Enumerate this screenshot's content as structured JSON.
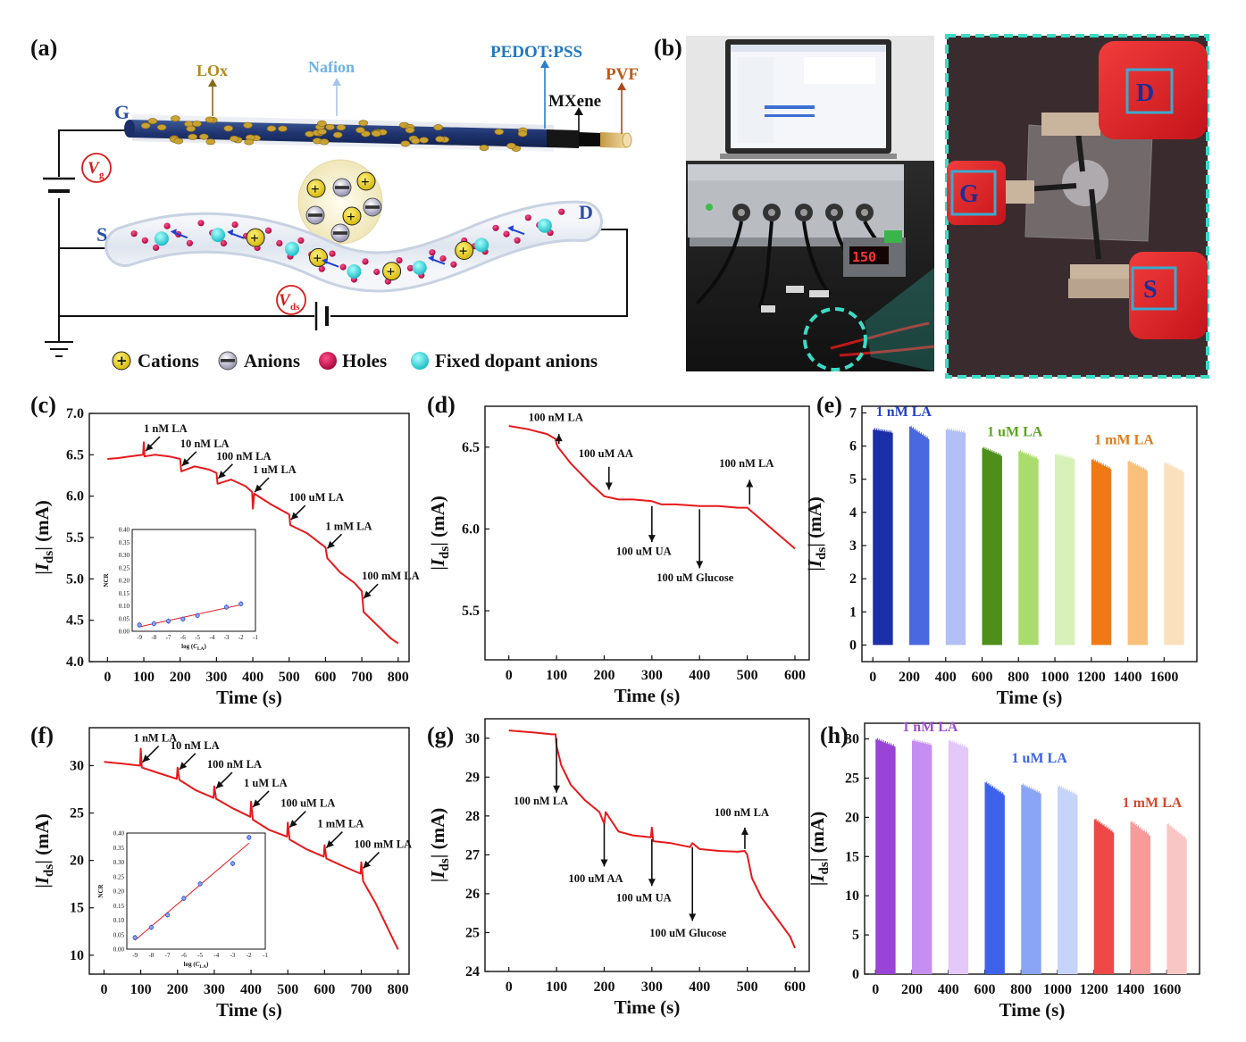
{
  "panel_letters": [
    "(a)",
    "(b)",
    "(c)",
    "(d)",
    "(e)",
    "(f)",
    "(g)",
    "(h)"
  ],
  "schematic": {
    "labels": {
      "lox": "LOx",
      "nafion": "Nafion",
      "pedot": "PEDOT:PSS",
      "mxene": "MXene",
      "pvf": "PVF",
      "gate": "G",
      "source": "S",
      "drain": "D"
    },
    "vg": {
      "main": "V",
      "sub": "g"
    },
    "vds": {
      "main": "V",
      "sub": "ds"
    },
    "legend": [
      "Cations",
      "Anions",
      "Holes",
      "Fixed dopant anions"
    ]
  },
  "photo": {
    "device_labels": [
      "D",
      "G",
      "S"
    ],
    "meter_reading": "150"
  },
  "colors": {
    "trace": "#e8191c",
    "title_blue": "#2541c9",
    "title_green": "#5aa51d",
    "title_orange": "#e07a1b",
    "title_purple": "#9b4fd6",
    "title_blue2": "#3b62e8",
    "title_red": "#d8472f"
  },
  "chart_data": [
    {
      "id": "c",
      "type": "line",
      "xlabel": "Time (s)",
      "ylabel": "|I_ds| (mA)",
      "xlim": [
        -50,
        830
      ],
      "ylim": [
        4.0,
        7.0
      ],
      "xticks": [
        0,
        100,
        200,
        300,
        400,
        500,
        600,
        700,
        800
      ],
      "yticks": [
        4.0,
        4.5,
        5.0,
        5.5,
        6.0,
        6.5,
        7.0
      ],
      "series": [
        {
          "x": [
            0,
            30,
            60,
            98,
            100,
            102,
            130,
            170,
            200,
            203,
            240,
            280,
            300,
            303,
            340,
            380,
            398,
            400,
            404,
            450,
            500,
            503,
            550,
            600,
            605,
            640,
            680,
            700,
            705,
            740,
            780,
            800
          ],
          "y": [
            6.45,
            6.46,
            6.48,
            6.5,
            6.65,
            6.48,
            6.5,
            6.48,
            6.45,
            6.3,
            6.36,
            6.32,
            6.28,
            6.15,
            6.2,
            6.12,
            6.05,
            5.85,
            6.03,
            5.9,
            5.78,
            5.65,
            5.55,
            5.38,
            5.25,
            5.08,
            4.95,
            4.85,
            4.6,
            4.45,
            4.28,
            4.22
          ]
        }
      ],
      "annotations": [
        {
          "text": "1 nM LA",
          "x": 100
        },
        {
          "text": "10 nM LA",
          "x": 200
        },
        {
          "text": "100 nM LA",
          "x": 300
        },
        {
          "text": "1 uM LA",
          "x": 400
        },
        {
          "text": "100 uM LA",
          "x": 500
        },
        {
          "text": "1 mM LA",
          "x": 600
        },
        {
          "text": "100 mM LA",
          "x": 700
        }
      ],
      "inset": {
        "xlabel": "log (C_LA)",
        "ylabel": "NCR",
        "xlim": [
          -9.5,
          -1
        ],
        "ylim": [
          0,
          0.4
        ],
        "xticks": [
          -9,
          -8,
          -7,
          -6,
          -5,
          -4,
          -3,
          -2,
          -1
        ],
        "yticks": [
          0.0,
          0.05,
          0.1,
          0.15,
          0.2,
          0.25,
          0.3,
          0.35,
          0.4
        ],
        "x": [
          -9,
          -8,
          -7,
          -6,
          -5,
          -3,
          -2
        ],
        "y": [
          0.025,
          0.03,
          0.04,
          0.048,
          0.062,
          0.095,
          0.108
        ]
      }
    },
    {
      "id": "d",
      "type": "line",
      "xlabel": "Time (s)",
      "ylabel": "|I_ds| (mA)",
      "xlim": [
        -50,
        630
      ],
      "ylim": [
        5.2,
        6.75
      ],
      "xticks": [
        0,
        100,
        200,
        300,
        400,
        500,
        600
      ],
      "yticks": [
        5.5,
        6.0,
        6.5
      ],
      "series": [
        {
          "x": [
            0,
            40,
            80,
            98,
            100,
            103,
            130,
            170,
            200,
            230,
            260,
            300,
            320,
            350,
            400,
            440,
            480,
            500,
            520,
            560,
            600
          ],
          "y": [
            6.63,
            6.61,
            6.58,
            6.55,
            6.52,
            6.5,
            6.4,
            6.28,
            6.2,
            6.18,
            6.18,
            6.17,
            6.15,
            6.15,
            6.14,
            6.14,
            6.13,
            6.13,
            6.08,
            5.98,
            5.88
          ]
        }
      ],
      "annotations": [
        {
          "text": "100 nM LA",
          "x": 105
        },
        {
          "text": "100 uM AA",
          "x": 210
        },
        {
          "text": "100 uM UA",
          "x": 300
        },
        {
          "text": "100 uM Glucose",
          "x": 400
        },
        {
          "text": "100 nM LA",
          "x": 505
        }
      ]
    },
    {
      "id": "e",
      "type": "bar",
      "xlabel": "Time (s)",
      "ylabel": "|I_ds| (mA)",
      "xlim": [
        -60,
        1780
      ],
      "ylim": [
        -0.5,
        7.2
      ],
      "xticks": [
        0,
        200,
        400,
        600,
        800,
        1000,
        1200,
        1400,
        1600
      ],
      "yticks": [
        0,
        1,
        2,
        3,
        4,
        5,
        6,
        7
      ],
      "blocks": [
        {
          "start": 0,
          "end": 110,
          "top": 6.5,
          "end_top": 6.4,
          "color": "#1a2fa8"
        },
        {
          "start": 200,
          "end": 310,
          "top": 6.6,
          "end_top": 6.2,
          "color": "#4a68e0"
        },
        {
          "start": 400,
          "end": 510,
          "top": 6.5,
          "end_top": 6.4,
          "color": "#b3c0f5"
        },
        {
          "start": 600,
          "end": 710,
          "top": 5.95,
          "end_top": 5.7,
          "color": "#4e8f1a"
        },
        {
          "start": 800,
          "end": 910,
          "top": 5.85,
          "end_top": 5.6,
          "color": "#a9dc6c"
        },
        {
          "start": 1000,
          "end": 1110,
          "top": 5.75,
          "end_top": 5.6,
          "color": "#d8f1b8"
        },
        {
          "start": 1200,
          "end": 1310,
          "top": 5.6,
          "end_top": 5.3,
          "color": "#ef7a15"
        },
        {
          "start": 1400,
          "end": 1510,
          "top": 5.55,
          "end_top": 5.25,
          "color": "#f8c07a"
        },
        {
          "start": 1600,
          "end": 1710,
          "top": 5.5,
          "end_top": 5.2,
          "color": "#fbe0bd"
        }
      ],
      "labels": [
        {
          "text": "1 nM LA",
          "x": 170,
          "y": 6.9,
          "color": "#2541c9"
        },
        {
          "text": "1 uM LA",
          "x": 780,
          "y": 6.3,
          "color": "#5aa51d"
        },
        {
          "text": "1 mM LA",
          "x": 1380,
          "y": 6.05,
          "color": "#e07a1b"
        }
      ]
    },
    {
      "id": "f",
      "type": "line",
      "xlabel": "Time (s)",
      "ylabel": "|I_ds| (mA)",
      "xlim": [
        -40,
        830
      ],
      "ylim": [
        8,
        34
      ],
      "xticks": [
        0,
        100,
        200,
        300,
        400,
        500,
        600,
        700,
        800
      ],
      "yticks": [
        10,
        15,
        20,
        25,
        30
      ],
      "series": [
        {
          "x": [
            0,
            50,
            98,
            100,
            103,
            150,
            198,
            200,
            205,
            250,
            298,
            300,
            305,
            350,
            398,
            400,
            405,
            450,
            498,
            500,
            505,
            550,
            598,
            600,
            605,
            650,
            698,
            700,
            705,
            740,
            780,
            800
          ],
          "y": [
            30.4,
            30.2,
            30.0,
            31.8,
            29.8,
            29.2,
            28.6,
            29.8,
            28.5,
            27.4,
            26.6,
            27.8,
            26.5,
            25.5,
            24.6,
            26.2,
            24.3,
            23.2,
            22.5,
            24.0,
            22.2,
            21.2,
            20.4,
            21.6,
            20.2,
            19.4,
            18.6,
            19.8,
            17.8,
            15.4,
            12.2,
            10.6
          ]
        }
      ],
      "annotations": [
        {
          "text": "1 nM LA",
          "x": 100
        },
        {
          "text": "10 nM LA",
          "x": 200
        },
        {
          "text": "100 nM LA",
          "x": 300
        },
        {
          "text": "1 uM LA",
          "x": 400
        },
        {
          "text": "100 uM LA",
          "x": 500
        },
        {
          "text": "1 mM LA",
          "x": 600
        },
        {
          "text": "100 mM LA",
          "x": 700
        }
      ],
      "inset": {
        "xlabel": "log (C_LA)",
        "ylabel": "NCR",
        "xlim": [
          -9.5,
          -1
        ],
        "ylim": [
          0,
          0.4
        ],
        "xticks": [
          -9,
          -8,
          -7,
          -6,
          -5,
          -4,
          -3,
          -2,
          -1
        ],
        "yticks": [
          0.0,
          0.05,
          0.1,
          0.15,
          0.2,
          0.25,
          0.3,
          0.35,
          0.4
        ],
        "x": [
          -9,
          -8,
          -7,
          -6,
          -5,
          -3,
          -2
        ],
        "y": [
          0.04,
          0.075,
          0.118,
          0.175,
          0.225,
          0.295,
          0.385
        ]
      }
    },
    {
      "id": "g",
      "type": "line",
      "xlabel": "Time (s)",
      "ylabel": "|I_ds| (mA)",
      "xlim": [
        -50,
        630
      ],
      "ylim": [
        24,
        30.5
      ],
      "xticks": [
        0,
        100,
        200,
        300,
        400,
        500,
        600
      ],
      "yticks": [
        24,
        25,
        26,
        27,
        28,
        29,
        30
      ],
      "series": [
        {
          "x": [
            0,
            50,
            90,
            98,
            100,
            110,
            130,
            160,
            190,
            200,
            203,
            230,
            260,
            298,
            300,
            303,
            340,
            380,
            385,
            400,
            440,
            480,
            495,
            500,
            510,
            530,
            560,
            590,
            600
          ],
          "y": [
            30.2,
            30.15,
            30.1,
            30.1,
            29.8,
            29.3,
            28.8,
            28.4,
            28.1,
            27.8,
            28.1,
            27.6,
            27.5,
            27.45,
            27.7,
            27.35,
            27.3,
            27.2,
            27.3,
            27.15,
            27.1,
            27.08,
            27.1,
            27.0,
            26.4,
            25.9,
            25.4,
            24.9,
            24.6
          ]
        }
      ],
      "annotations": [
        {
          "text": "100 nM LA",
          "x": 95
        },
        {
          "text": "100 uM AA",
          "x": 200
        },
        {
          "text": "100 uM UA",
          "x": 300
        },
        {
          "text": "100 uM Glucose",
          "x": 385
        },
        {
          "text": "100 nM LA",
          "x": 495
        }
      ]
    },
    {
      "id": "h",
      "type": "bar",
      "xlabel": "Time (s)",
      "ylabel": "|I_ds| (mA)",
      "xlim": [
        -60,
        1780
      ],
      "ylim": [
        0,
        32
      ],
      "xticks": [
        0,
        200,
        400,
        600,
        800,
        1000,
        1200,
        1400,
        1600
      ],
      "yticks": [
        0,
        5,
        10,
        15,
        20,
        25,
        30
      ],
      "blocks": [
        {
          "start": 0,
          "end": 110,
          "top": 30,
          "end_top": 29.0,
          "color": "#9a44d6"
        },
        {
          "start": 200,
          "end": 310,
          "top": 29.8,
          "end_top": 29.2,
          "color": "#c58ef0"
        },
        {
          "start": 400,
          "end": 510,
          "top": 29.8,
          "end_top": 28.8,
          "color": "#e3c8f8"
        },
        {
          "start": 600,
          "end": 710,
          "top": 24.5,
          "end_top": 22.8,
          "color": "#3e63ea"
        },
        {
          "start": 800,
          "end": 910,
          "top": 24.2,
          "end_top": 23.0,
          "color": "#8aa5f5"
        },
        {
          "start": 1000,
          "end": 1110,
          "top": 24.0,
          "end_top": 22.8,
          "color": "#c7d4fa"
        },
        {
          "start": 1200,
          "end": 1310,
          "top": 19.8,
          "end_top": 18.0,
          "color": "#ee4848"
        },
        {
          "start": 1400,
          "end": 1510,
          "top": 19.5,
          "end_top": 17.6,
          "color": "#f69a9a"
        },
        {
          "start": 1600,
          "end": 1710,
          "top": 19.2,
          "end_top": 17.2,
          "color": "#f9c6c6"
        }
      ],
      "labels": [
        {
          "text": "1 nM LA",
          "x": 300,
          "y": 31,
          "color": "#9b4fd6"
        },
        {
          "text": "1 uM LA",
          "x": 900,
          "y": 27,
          "color": "#3b62e8"
        },
        {
          "text": "1 mM LA",
          "x": 1520,
          "y": 21.3,
          "color": "#d8472f"
        }
      ]
    }
  ]
}
